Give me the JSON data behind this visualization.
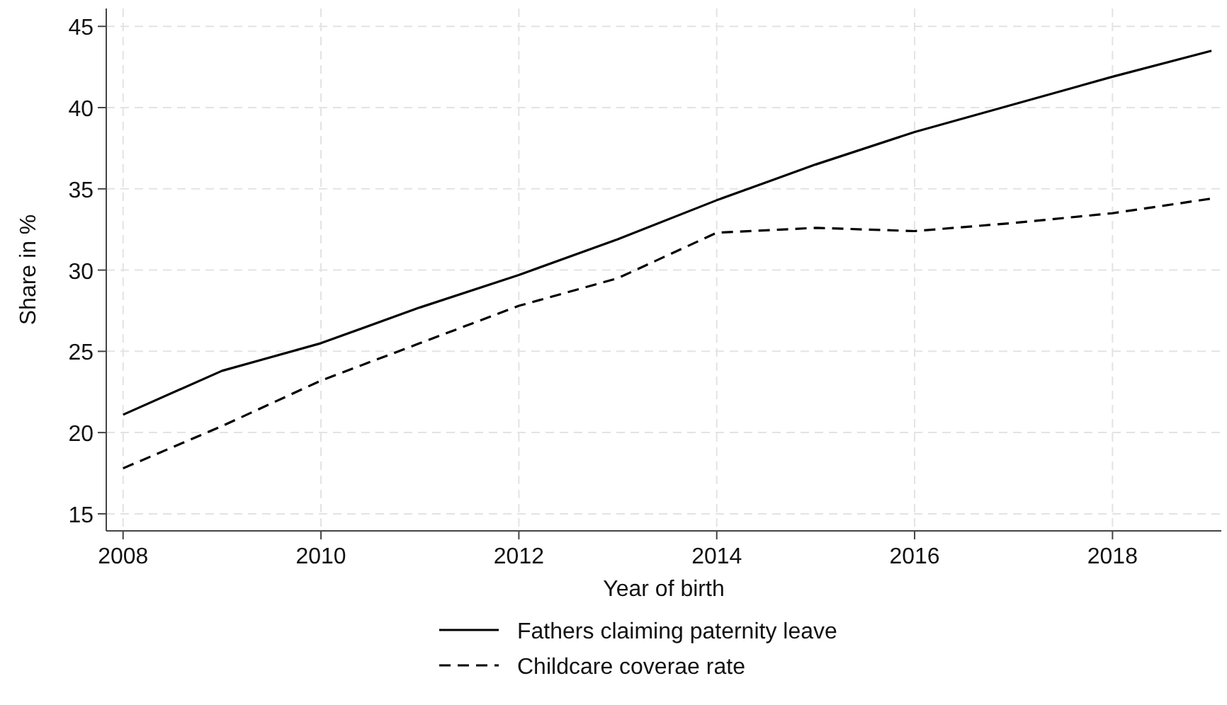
{
  "chart_data": {
    "type": "line",
    "xlabel": "Year of birth",
    "ylabel": "Share in %",
    "x": [
      2008,
      2009,
      2010,
      2011,
      2012,
      2013,
      2014,
      2015,
      2016,
      2017,
      2018,
      2019
    ],
    "series": [
      {
        "name": "Fathers claiming paternity leave",
        "color": "#000000",
        "line_style": "solid",
        "values": [
          21.1,
          23.8,
          25.5,
          27.7,
          29.7,
          31.9,
          34.3,
          36.5,
          38.5,
          40.2,
          41.9,
          43.5
        ]
      },
      {
        "name": "Childcare coverae rate",
        "color": "#000000",
        "line_style": "dashed",
        "values": [
          17.8,
          20.4,
          23.2,
          25.5,
          27.8,
          29.5,
          32.3,
          32.6,
          32.4,
          32.9,
          33.5,
          34.4
        ]
      }
    ],
    "xlim": [
      2007.83,
      2019.1
    ],
    "ylim": [
      13.95,
      46.1
    ],
    "xticks": [
      2008,
      2010,
      2012,
      2014,
      2016,
      2018
    ],
    "yticks": [
      15,
      20,
      25,
      30,
      35,
      40,
      45
    ],
    "grid": true,
    "legend": "bottom"
  }
}
